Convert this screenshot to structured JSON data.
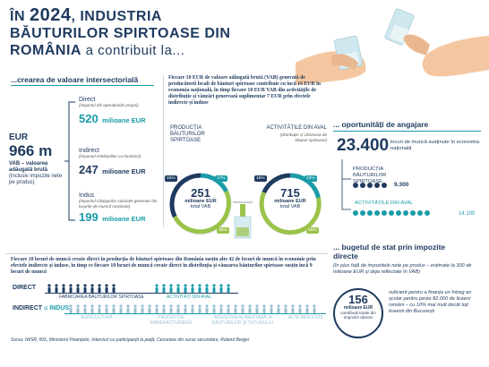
{
  "title": {
    "prefix": "ÎN",
    "year": "2024",
    "rest1": ", INDUSTRIA",
    "line2": "BĂUTURILOR SPIRTOASE DIN",
    "line3_bold": "ROMÂNIA",
    "line3_rest": " a contribuit la..."
  },
  "value_section": {
    "heading": "...crearea de valoare intersectorială",
    "eur_label": "EUR",
    "eur_value": "966 m",
    "eur_desc_bold": "VAB – valoarea adăugată brută",
    "eur_desc": "(inclusiv impozite nete pe produs)",
    "direct_label": "Direct",
    "direct_note": "(impactul din operațiunile proprii)",
    "direct_value": "520",
    "direct_unit": "milioane EUR",
    "indirect_label": "Indirect",
    "indirect_note": "(impactul cheltuielilor cu furnizorii)",
    "indirect_value": "247",
    "indirect_unit": "milioane EUR",
    "indus_label": "Indus",
    "indus_note": "(impactul câștigurilor salariale generate din locurile de muncă susținute)",
    "indus_value": "199",
    "indus_unit": "milioane EUR"
  },
  "middle": {
    "text": "Fiecare 10 EUR de valoare adăugată brută (VAB) generată de producătorii locali de băuturi spirtoase contribuie cu încă 16 EUR în economia națională, în timp fiecare 10 EUR VAB din activitățile de distribuție și vânzări generează suplimentar 7 EUR prin efectele indirecte și induse",
    "left_title": "PRODUCȚIA BĂUTURILOR SPIRTOASE",
    "right_title": "ACTIVITĂȚILE DIN AVAL",
    "right_note": "(distribuție și vânzarea de băuturi spirtoase)",
    "left_value": "251",
    "left_unit": "milioane EUR",
    "left_sub": "total VAB",
    "right_value": "715",
    "right_unit": "milioane EUR",
    "right_sub": "total VAB",
    "left_pct_a": "45%",
    "left_pct_b": "17%",
    "left_pct_c": "38%",
    "right_pct_a": "19%",
    "right_pct_b": "22%",
    "right_pct_c": "59%"
  },
  "jobs": {
    "heading": "... oportunități de angajare",
    "total": "23.400",
    "total_desc": "locuri de muncă susținute în economia națională",
    "prod_label": "PRODUCȚIA BĂUTURILOR SPIRTOASE",
    "prod_value": "9.300",
    "aval_label": "ACTIVITĂȚILE DIN AVAL",
    "aval_value": "14.100"
  },
  "budget": {
    "heading": "... bugetul de stat prin impozite directe",
    "note": "(în plus față de impozitele nete pe produs – estimate la 300 de milioane EUR și deja reflectate în VAB)",
    "value": "156",
    "unit": "milioane EUR",
    "desc": "contribuții totale din impozite directe",
    "side": "suficient pentru a finanța un întreg an școlar pentru peste 82.000 de liceeni români – cu 10% mai mult decât toți liceenii din București"
  },
  "bottom": {
    "text": "Fiecare 10 locuri de muncă create direct în producția de băuturi spirtoase din România susțin alte 42 de locuri de muncă în economie prin efectele indirecte și induse, în timp ce fiecare 10 locuri de muncă create direct în distribuția și vânzarea băuturilor spirtoase susțin încă 9 locuri de muncă",
    "direct_label": "DIRECT",
    "indirect_label": "INDIRECT",
    "si": "și",
    "indus_label": "INDUS",
    "cat1": "FABRICAREA BĂUTURILOR SPIRTOASE",
    "cat2": "ACTIVITĂȚI DIN AVAL",
    "cat3": "AGRICULTURĂ",
    "cat4": "PRODUCȚIE MANUFACTURIERĂ",
    "cat5": "INDUSTRIA ALIMENTARĂ, A BĂUTURILOR ȘI TUTUNULUI",
    "cat6": "ALTE INDUSTRII",
    "source": "Sursa: IWSR, INS, Ministerul Finanțelor, Interviuri cu participanții la piață, Cercetare din surse secundare, Roland Berger"
  },
  "colors": {
    "navy": "#1e3a5f",
    "teal": "#1a9ba8",
    "green": "#9bc34a",
    "skin": "#f4c7a1"
  }
}
